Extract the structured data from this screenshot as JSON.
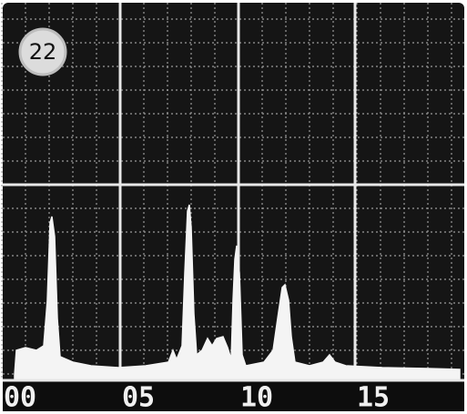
{
  "badge": "22",
  "scale": {
    "labels": [
      "00",
      "05",
      "10",
      "15"
    ]
  }
}
